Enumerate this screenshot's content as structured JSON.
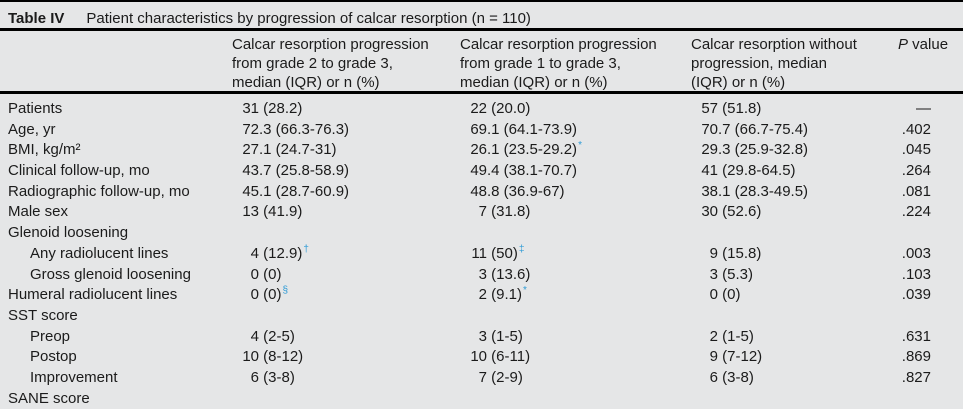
{
  "colors": {
    "background": "#e5e6e7",
    "text": "#1b1b1b",
    "rule": "#000000",
    "marker": "#2e9bd6"
  },
  "title": {
    "label": "Table IV",
    "caption": "Patient characteristics by progression of calcar resorption (n = 110)"
  },
  "table": {
    "header": {
      "col1": "",
      "col2_lines": [
        "Calcar resorption progression",
        "from grade 2 to grade 3,",
        "median (IQR) or n (%)"
      ],
      "col3_lines": [
        "Calcar resorption progression",
        "from grade 1 to grade 3,",
        "median (IQR) or n (%)"
      ],
      "col4_lines": [
        "Calcar resorption without",
        "progression, median",
        "(IQR) or n (%)"
      ],
      "col5_italic": "P",
      "col5_rest": " value"
    },
    "rows": [
      {
        "label": "Patients",
        "indent": false,
        "section": false,
        "values": [
          "31 (28.2)",
          "22 (20.0)",
          "57 (51.8)"
        ],
        "markers": [
          "",
          "",
          ""
        ],
        "p": "—"
      },
      {
        "label": "Age, yr",
        "indent": false,
        "section": false,
        "values": [
          "72.3 (66.3-76.3)",
          "69.1 (64.1-73.9)",
          "70.7 (66.7-75.4)"
        ],
        "markers": [
          "",
          "",
          ""
        ],
        "p": ".402"
      },
      {
        "label": "BMI, kg/m²",
        "indent": false,
        "section": false,
        "values": [
          "27.1 (24.7-31)",
          "26.1 (23.5-29.2)",
          "29.3 (25.9-32.8)"
        ],
        "markers": [
          "",
          "*",
          ""
        ],
        "p": ".045"
      },
      {
        "label": "Clinical follow-up, mo",
        "indent": false,
        "section": false,
        "values": [
          "43.7 (25.8-58.9)",
          "49.4 (38.1-70.7)",
          "41 (29.8-64.5)"
        ],
        "markers": [
          "",
          "",
          ""
        ],
        "p": ".264"
      },
      {
        "label": "Radiographic follow-up, mo",
        "indent": false,
        "section": false,
        "values": [
          "45.1 (28.7-60.9)",
          "48.8 (36.9-67)",
          "38.1 (28.3-49.5)"
        ],
        "markers": [
          "",
          "",
          ""
        ],
        "p": ".081"
      },
      {
        "label": "Male sex",
        "indent": false,
        "section": false,
        "values": [
          "13 (41.9)",
          "7 (31.8)",
          "30 (52.6)"
        ],
        "markers": [
          "",
          "",
          ""
        ],
        "p": ".224"
      },
      {
        "label": "Glenoid loosening",
        "indent": false,
        "section": true,
        "values": [
          "",
          "",
          ""
        ],
        "markers": [
          "",
          "",
          ""
        ],
        "p": ""
      },
      {
        "label": "Any radiolucent lines",
        "indent": true,
        "section": false,
        "values": [
          "4 (12.9)",
          "11 (50)",
          "9 (15.8)"
        ],
        "markers": [
          "†",
          "‡",
          ""
        ],
        "p": ".003"
      },
      {
        "label": "Gross glenoid loosening",
        "indent": true,
        "section": false,
        "values": [
          "0 (0)",
          "3 (13.6)",
          "3 (5.3)"
        ],
        "markers": [
          "",
          "",
          ""
        ],
        "p": ".103"
      },
      {
        "label": "Humeral radiolucent lines",
        "indent": false,
        "section": false,
        "values": [
          "0 (0)",
          "2 (9.1)",
          "0 (0)"
        ],
        "markers": [
          "§",
          "*",
          ""
        ],
        "p": ".039"
      },
      {
        "label": "SST score",
        "indent": false,
        "section": true,
        "values": [
          "",
          "",
          ""
        ],
        "markers": [
          "",
          "",
          ""
        ],
        "p": ""
      },
      {
        "label": "Preop",
        "indent": true,
        "section": false,
        "values": [
          "4 (2-5)",
          "3 (1-5)",
          "2 (1-5)"
        ],
        "markers": [
          "",
          "",
          ""
        ],
        "p": ".631"
      },
      {
        "label": "Postop",
        "indent": true,
        "section": false,
        "values": [
          "10 (8-12)",
          "10 (6-11)",
          "9 (7-12)"
        ],
        "markers": [
          "",
          "",
          ""
        ],
        "p": ".869"
      },
      {
        "label": "Improvement",
        "indent": true,
        "section": false,
        "values": [
          "6 (3-8)",
          "7 (2-9)",
          "6 (3-8)"
        ],
        "markers": [
          "",
          "",
          ""
        ],
        "p": ".827"
      },
      {
        "label": "SANE score",
        "indent": false,
        "section": true,
        "clipped": true,
        "values": [
          "",
          "",
          ""
        ],
        "markers": [
          "",
          "",
          ""
        ],
        "p": ""
      }
    ]
  },
  "chart_data": {
    "type": "table",
    "title": "Table IV Patient characteristics by progression of calcar resorption (n = 110)",
    "columns": [
      "",
      "Calcar resorption progression from grade 2 to grade 3, median (IQR) or n (%)",
      "Calcar resorption progression from grade 1 to grade 3, median (IQR) or n (%)",
      "Calcar resorption without progression, median (IQR) or n (%)",
      "P value"
    ],
    "rows": [
      [
        "Patients",
        "31 (28.2)",
        "22 (20.0)",
        "57 (51.8)",
        "—"
      ],
      [
        "Age, yr",
        "72.3 (66.3-76.3)",
        "69.1 (64.1-73.9)",
        "70.7 (66.7-75.4)",
        ".402"
      ],
      [
        "BMI, kg/m²",
        "27.1 (24.7-31)",
        "26.1 (23.5-29.2)*",
        "29.3 (25.9-32.8)",
        ".045"
      ],
      [
        "Clinical follow-up, mo",
        "43.7 (25.8-58.9)",
        "49.4 (38.1-70.7)",
        "41 (29.8-64.5)",
        ".264"
      ],
      [
        "Radiographic follow-up, mo",
        "45.1 (28.7-60.9)",
        "48.8 (36.9-67)",
        "38.1 (28.3-49.5)",
        ".081"
      ],
      [
        "Male sex",
        "13 (41.9)",
        "7 (31.8)",
        "30 (52.6)",
        ".224"
      ],
      [
        "Glenoid loosening",
        "",
        "",
        "",
        ""
      ],
      [
        "Any radiolucent lines",
        "4 (12.9)†",
        "11 (50)‡",
        "9 (15.8)",
        ".003"
      ],
      [
        "Gross glenoid loosening",
        "0 (0)",
        "3 (13.6)",
        "3 (5.3)",
        ".103"
      ],
      [
        "Humeral radiolucent lines",
        "0 (0)§",
        "2 (9.1)*",
        "0 (0)",
        ".039"
      ],
      [
        "SST score",
        "",
        "",
        "",
        ""
      ],
      [
        "Preop",
        "4 (2-5)",
        "3 (1-5)",
        "2 (1-5)",
        ".631"
      ],
      [
        "Postop",
        "10 (8-12)",
        "10 (6-11)",
        "9 (7-12)",
        ".869"
      ],
      [
        "Improvement",
        "6 (3-8)",
        "7 (2-9)",
        "6 (3-8)",
        ".827"
      ],
      [
        "SANE score",
        "",
        "",
        "",
        ""
      ]
    ]
  }
}
